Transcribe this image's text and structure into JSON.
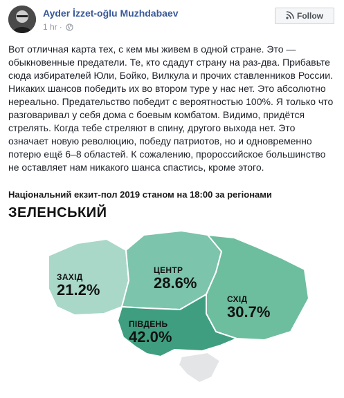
{
  "post": {
    "author": "Ayder İzzet-oğlu Muzhdabaev",
    "time": "1 hr",
    "separator": "·",
    "follow_label": "Follow",
    "text": "Вот отличная карта тех, с кем мы живем в одной стране. Это — обыкновенные предатели. Те, кто сдадут страну на раз-два. Прибавьте сюда избирателей Юли, Бойко, Вилкула и прочих ставленников России. Никаких шансов победить их во втором туре у нас нет. Это абсолютно нереально. Предательство победит с вероятностью 100%. Я только что разговаривал у себя дома с боевым комбатом. Видимо, придётся стрелять. Когда тебе стреляют в спину, другого выхода нет. Это означает новую революцию, победу патриотов, но и одновременно потерю ещё 6–8 областей. К сожалению, пророссийское большинство не оставляет нам никакого шанса спастись, кроме этого."
  },
  "image": {
    "title": "Національний екзит-пол 2019 станом на 18:00 за регіонами",
    "subtitle": "ЗЕЛЕНСЬКИЙ",
    "regions": [
      {
        "name": "ЗАХІД",
        "value": "21.2%",
        "color": "#a9d8c8"
      },
      {
        "name": "ЦЕНТР",
        "value": "28.6%",
        "color": "#7cc4ac"
      },
      {
        "name": "СХІД",
        "value": "30.7%",
        "color": "#6dbd9f"
      },
      {
        "name": "ПІВДЕНЬ",
        "value": "42.0%",
        "color": "#3f9e7f"
      }
    ],
    "crimea_color": "#e3e5e7"
  },
  "icons": {
    "globe": "globe-icon",
    "follow": "rss-icon"
  }
}
